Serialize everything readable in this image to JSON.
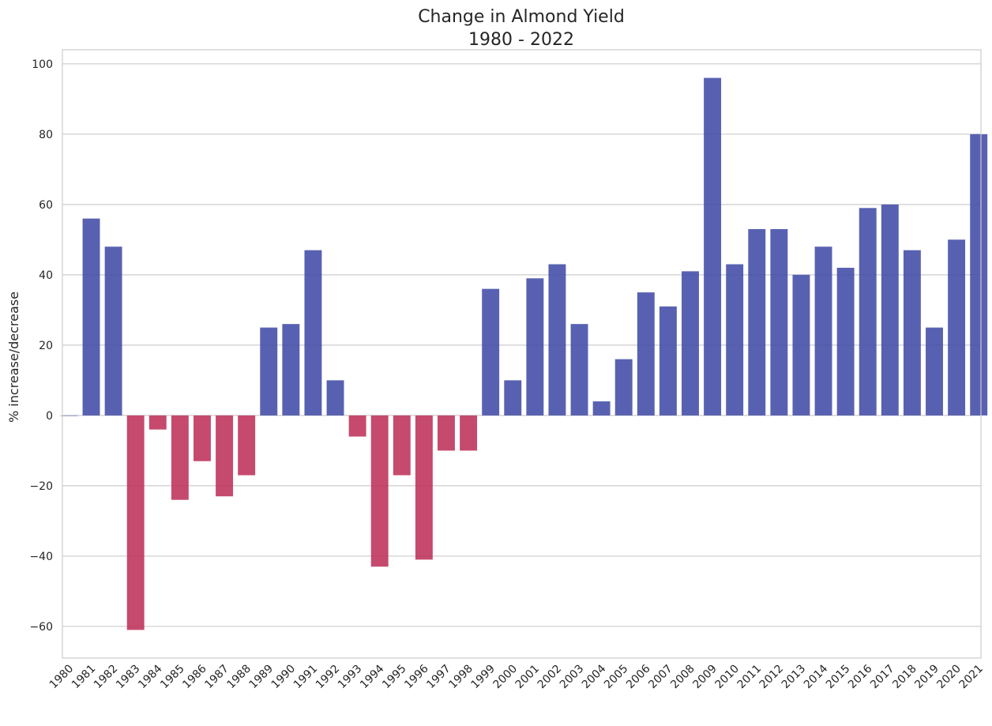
{
  "chart_data": {
    "type": "bar",
    "title_lines": [
      "Change in Almond Yield",
      "1980 - 2022"
    ],
    "xlabel": "",
    "ylabel": "% increase/decrease",
    "ylim": [
      -69,
      104
    ],
    "yticks": [
      100,
      80,
      60,
      40,
      20,
      0,
      -20,
      -40,
      -60
    ],
    "ytick_labels": [
      "100",
      "80",
      "60",
      "40",
      "20",
      "0",
      "−20",
      "−40",
      "−60"
    ],
    "grid": "horizontal",
    "colors": {
      "increase": "#3f4aa5",
      "decrease": "#bc2f57",
      "grid": "#cccccc",
      "frame": "#cccccc"
    },
    "categories": [
      "1980",
      "1981",
      "1982",
      "1983",
      "1984",
      "1985",
      "1986",
      "1987",
      "1988",
      "1989",
      "1990",
      "1991",
      "1992",
      "1993",
      "1994",
      "1995",
      "1996",
      "1997",
      "1998",
      "1999",
      "2000",
      "2001",
      "2002",
      "2003",
      "2004",
      "2005",
      "2006",
      "2007",
      "2008",
      "2009",
      "2010",
      "2011",
      "2012",
      "2013",
      "2014",
      "2015",
      "2016",
      "2017",
      "2018",
      "2019",
      "2020",
      "2021"
    ],
    "values": [
      0,
      56,
      48,
      -61,
      -4,
      -24,
      -13,
      -23,
      -17,
      25,
      26,
      47,
      10,
      -6,
      -43,
      -17,
      -41,
      -10,
      -10,
      36,
      10,
      39,
      43,
      26,
      4,
      16,
      35,
      31,
      41,
      96,
      43,
      53,
      53,
      40,
      48,
      42,
      59,
      60,
      47,
      25,
      50,
      80
    ]
  }
}
